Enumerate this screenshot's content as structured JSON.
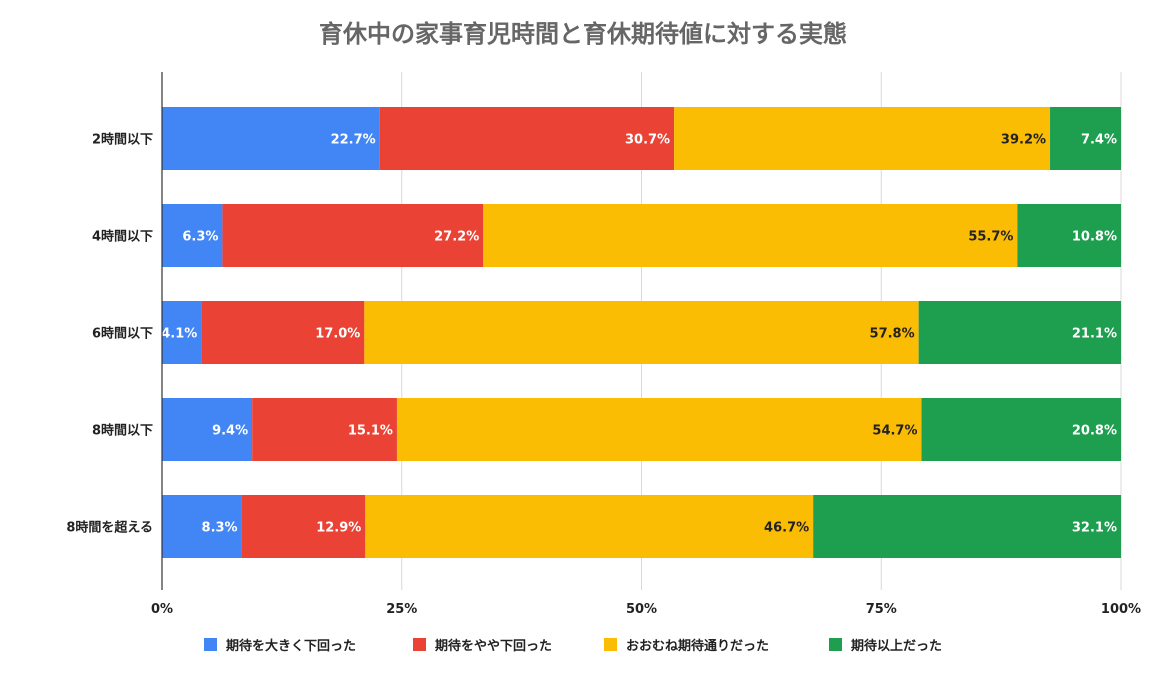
{
  "chart_data": {
    "type": "bar",
    "orientation": "horizontal",
    "stacked": "percent",
    "title": "育休中の家事育児時間と育休期待値に対する実態",
    "categories": [
      "2時間以下",
      "4時間以下",
      "6時間以下",
      "8時間以下",
      "8時間を超える"
    ],
    "series": [
      {
        "name": "期待を大きく下回った",
        "color": "#4285f4",
        "label_color": "#ffffff",
        "values": [
          22.7,
          6.3,
          4.1,
          9.4,
          8.3
        ],
        "labels": [
          "22.7%",
          "6.3%",
          "4.1%",
          "9.4%",
          "8.3%"
        ]
      },
      {
        "name": "期待をやや下回った",
        "color": "#ea4335",
        "label_color": "#ffffff",
        "values": [
          30.7,
          27.2,
          17.0,
          15.1,
          12.9
        ],
        "labels": [
          "30.7%",
          "27.2%",
          "17.0%",
          "15.1%",
          "12.9%"
        ]
      },
      {
        "name": "おおむね期待通りだった",
        "color": "#fbbc04",
        "label_color": "#222222",
        "values": [
          39.2,
          55.7,
          57.8,
          54.7,
          46.7
        ],
        "labels": [
          "39.2%",
          "55.7%",
          "57.8%",
          "54.7%",
          "46.7%"
        ]
      },
      {
        "name": "期待以上だった",
        "color": "#1e9e4f",
        "label_color": "#ffffff",
        "values": [
          7.4,
          10.8,
          21.1,
          20.8,
          32.1
        ],
        "labels": [
          "7.4%",
          "10.8%",
          "21.1%",
          "20.8%",
          "32.1%"
        ]
      }
    ],
    "xaxis": {
      "ticks": [
        0,
        25,
        50,
        75,
        100
      ],
      "tick_labels": [
        "0%",
        "25%",
        "50%",
        "75%",
        "100%"
      ],
      "range": [
        0,
        100
      ]
    },
    "grid": true,
    "legend_position": "bottom"
  }
}
